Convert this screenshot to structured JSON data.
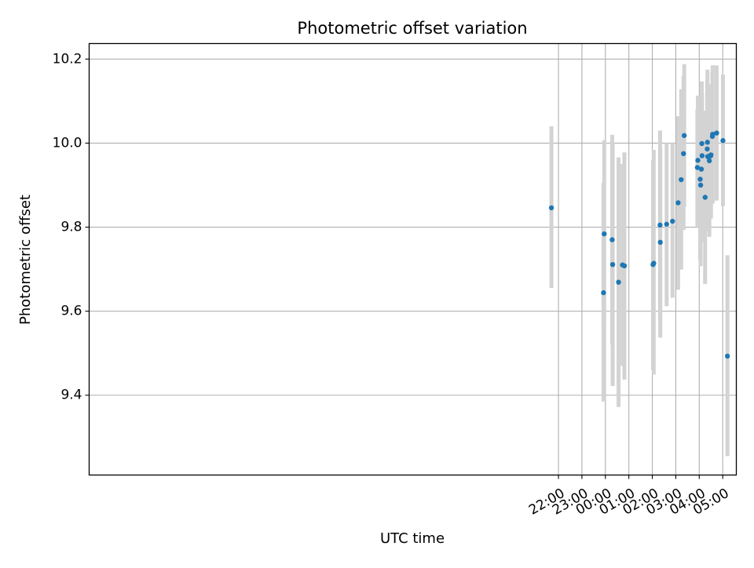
{
  "chart_data": {
    "type": "scatter",
    "title": "Photometric offset variation",
    "xlabel": "UTC time",
    "ylabel": "Photometric offset",
    "grid": true,
    "x_unit": "hours relative to 00:00 UTC",
    "xlim": [
      -22.0,
      5.58
    ],
    "ylim": [
      9.21,
      10.237
    ],
    "x_ticks": [
      {
        "value": -2.0,
        "label": "22:00"
      },
      {
        "value": -1.0,
        "label": "23:00"
      },
      {
        "value": 0.0,
        "label": "00:00"
      },
      {
        "value": 1.0,
        "label": "01:00"
      },
      {
        "value": 2.0,
        "label": "02:00"
      },
      {
        "value": 3.0,
        "label": "03:00"
      },
      {
        "value": 4.0,
        "label": "04:00"
      },
      {
        "value": 5.0,
        "label": "05:00"
      }
    ],
    "y_ticks": [
      {
        "value": 9.4,
        "label": "9.4"
      },
      {
        "value": 9.6,
        "label": "9.6"
      },
      {
        "value": 9.8,
        "label": "9.8"
      },
      {
        "value": 10.0,
        "label": "10.0"
      },
      {
        "value": 10.2,
        "label": "10.2"
      }
    ],
    "colors": {
      "marker": "#1f77b4",
      "errorbar": "#d3d3d3",
      "grid": "#b0b0b0"
    },
    "series": [
      {
        "name": "offset",
        "points": [
          {
            "x": -2.3,
            "y": 9.846,
            "lo": 9.655,
            "hi": 10.04
          },
          {
            "x": -0.08,
            "y": 9.644,
            "lo": 9.385,
            "hi": 9.905
          },
          {
            "x": -0.05,
            "y": 9.784,
            "lo": 9.562,
            "hi": 10.007
          },
          {
            "x": 0.29,
            "y": 9.77,
            "lo": 9.52,
            "hi": 10.02
          },
          {
            "x": 0.31,
            "y": 9.711,
            "lo": 9.422,
            "hi": 10.0
          },
          {
            "x": 0.56,
            "y": 9.669,
            "lo": 9.372,
            "hi": 9.966
          },
          {
            "x": 0.73,
            "y": 9.71,
            "lo": 9.47,
            "hi": 9.95
          },
          {
            "x": 0.81,
            "y": 9.708,
            "lo": 9.437,
            "hi": 9.978
          },
          {
            "x": 2.03,
            "y": 9.711,
            "lo": 9.46,
            "hi": 9.96
          },
          {
            "x": 2.06,
            "y": 9.714,
            "lo": 9.449,
            "hi": 9.984
          },
          {
            "x": 2.33,
            "y": 9.805,
            "lo": 9.58,
            "hi": 10.03
          },
          {
            "x": 2.34,
            "y": 9.764,
            "lo": 9.537,
            "hi": 9.99
          },
          {
            "x": 2.61,
            "y": 9.807,
            "lo": 9.612,
            "hi": 10.0
          },
          {
            "x": 2.86,
            "y": 9.814,
            "lo": 9.632,
            "hi": 10.0
          },
          {
            "x": 3.1,
            "y": 9.858,
            "lo": 9.651,
            "hi": 10.064
          },
          {
            "x": 3.23,
            "y": 9.913,
            "lo": 9.699,
            "hi": 10.128
          },
          {
            "x": 3.33,
            "y": 9.975,
            "lo": 9.793,
            "hi": 10.16
          },
          {
            "x": 3.36,
            "y": 10.018,
            "lo": 9.848,
            "hi": 10.188
          },
          {
            "x": 3.92,
            "y": 9.942,
            "lo": 9.8,
            "hi": 10.08
          },
          {
            "x": 3.94,
            "y": 9.959,
            "lo": 9.805,
            "hi": 10.113
          },
          {
            "x": 4.04,
            "y": 9.914,
            "lo": 9.72,
            "hi": 10.1
          },
          {
            "x": 4.06,
            "y": 9.9,
            "lo": 9.707,
            "hi": 10.093
          },
          {
            "x": 4.09,
            "y": 9.938,
            "lo": 9.764,
            "hi": 10.112
          },
          {
            "x": 4.11,
            "y": 9.999,
            "lo": 9.85,
            "hi": 10.147
          },
          {
            "x": 4.12,
            "y": 9.97,
            "lo": 9.818,
            "hi": 10.12
          },
          {
            "x": 4.25,
            "y": 9.871,
            "lo": 9.665,
            "hi": 10.077
          },
          {
            "x": 4.34,
            "y": 9.986,
            "lo": 9.82,
            "hi": 10.15
          },
          {
            "x": 4.35,
            "y": 10.002,
            "lo": 9.829,
            "hi": 10.175
          },
          {
            "x": 4.36,
            "y": 9.968,
            "lo": 9.79,
            "hi": 10.14
          },
          {
            "x": 4.42,
            "y": 9.969,
            "lo": 9.795,
            "hi": 10.14
          },
          {
            "x": 4.43,
            "y": 9.958,
            "lo": 9.777,
            "hi": 10.138
          },
          {
            "x": 4.49,
            "y": 9.97,
            "lo": 9.82,
            "hi": 10.12
          },
          {
            "x": 4.5,
            "y": 9.972,
            "lo": 9.823,
            "hi": 10.12
          },
          {
            "x": 4.56,
            "y": 10.016,
            "lo": 9.86,
            "hi": 10.17
          },
          {
            "x": 4.57,
            "y": 10.021,
            "lo": 9.856,
            "hi": 10.185
          },
          {
            "x": 4.74,
            "y": 10.024,
            "lo": 9.863,
            "hi": 10.185
          },
          {
            "x": 5.01,
            "y": 10.006,
            "lo": 9.85,
            "hi": 10.163
          },
          {
            "x": 5.2,
            "y": 9.493,
            "lo": 9.255,
            "hi": 9.733
          }
        ]
      }
    ]
  }
}
